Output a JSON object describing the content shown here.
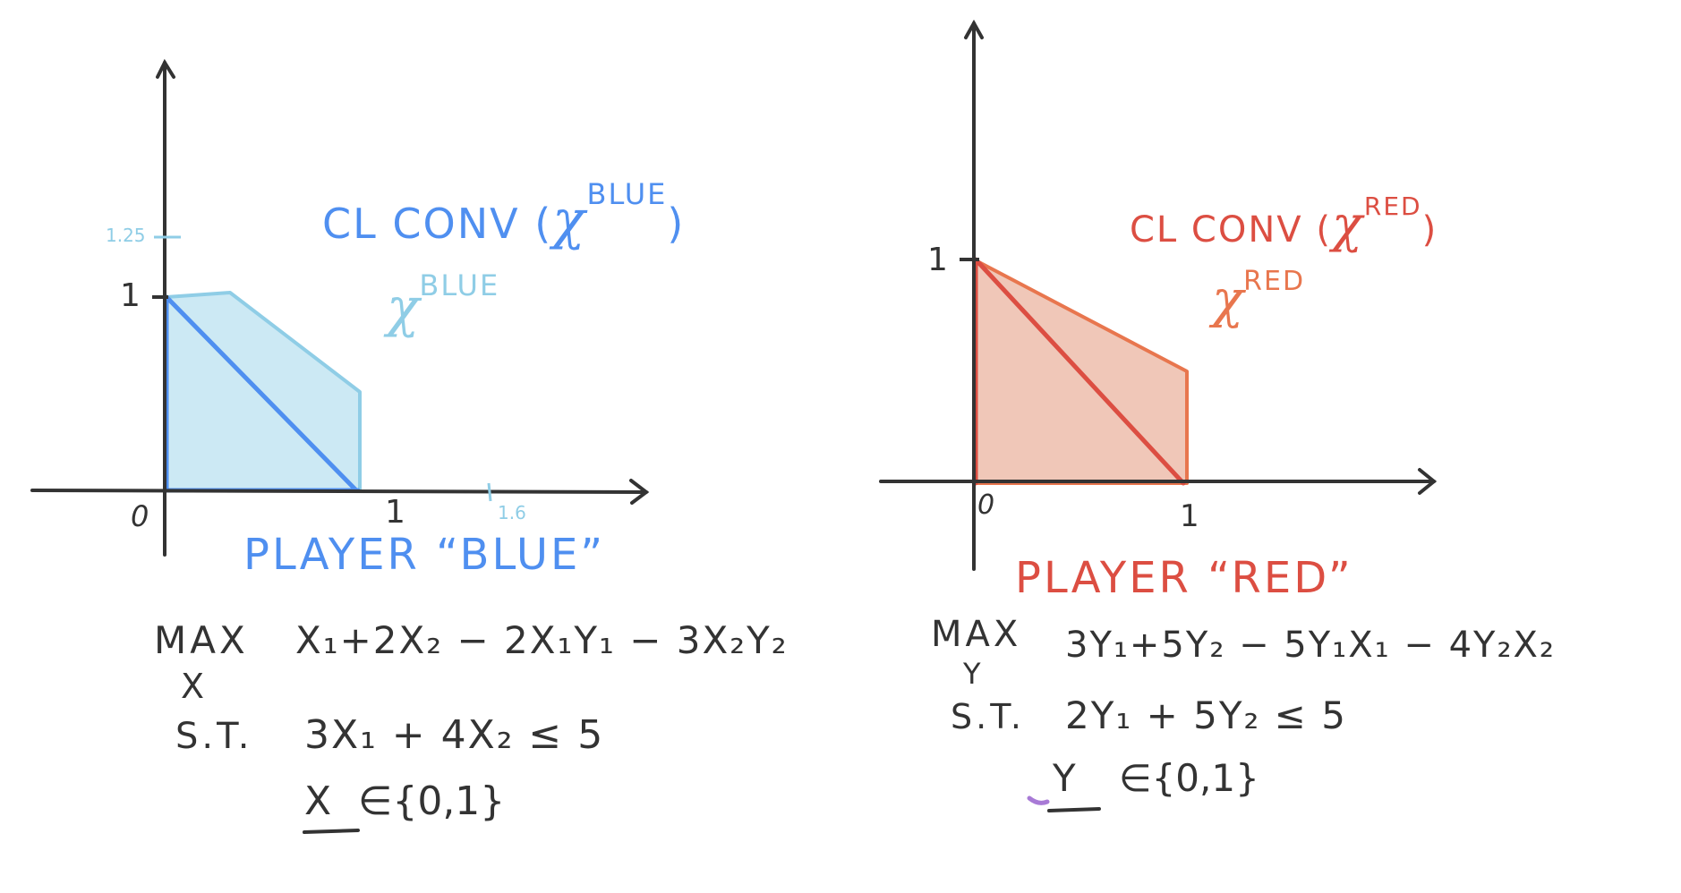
{
  "colors": {
    "blue_stroke": "#4f8ff0",
    "blue_fill": "#cce9f4",
    "blue_light": "#8fcde6",
    "red_stroke": "#dc4e42",
    "red_fill": "#f0c7b8",
    "red_light": "#e8764e",
    "ink": "#333333",
    "purple": "#a87ad6"
  },
  "blue_panel": {
    "heading_prefix": "CL CONV (",
    "heading_symbol": "χ",
    "heading_sup": "BLUE",
    "heading_suffix": ")",
    "set_symbol": "χ",
    "set_sup": "BLUE",
    "tick_1_25": "1.25",
    "tick_y1": "1",
    "origin": "0",
    "tick_x1": "1",
    "tick_1_6": "1.6",
    "player_label": "PLAYER  “BLUE”",
    "objective": {
      "max": "MAX",
      "var": "X",
      "expr": "X₁+2X₂ − 2X₁Y₁ − 3X₂Y₂"
    },
    "constraint_st": "S.T.",
    "constraint": "3X₁ + 4X₂ ≤ 5",
    "domain_var": "X",
    "domain_set": "∈{0,1}"
  },
  "red_panel": {
    "heading_prefix": "CL CONV (",
    "heading_symbol": "χ",
    "heading_sup": "RED",
    "heading_suffix": ")",
    "set_symbol": "χ",
    "set_sup": "RED",
    "tick_y1": "1",
    "origin": "0",
    "tick_x1": "1",
    "player_label": "PLAYER “RED”",
    "objective": {
      "max": "MAX",
      "var": "Y",
      "expr": "3Y₁+5Y₂ − 5Y₁X₁ − 4Y₂X₂"
    },
    "constraint_st": "S.T.",
    "constraint": "2Y₁ + 5Y₂ ≤ 5",
    "domain_var": "Y",
    "domain_set": "∈{0,1}"
  }
}
